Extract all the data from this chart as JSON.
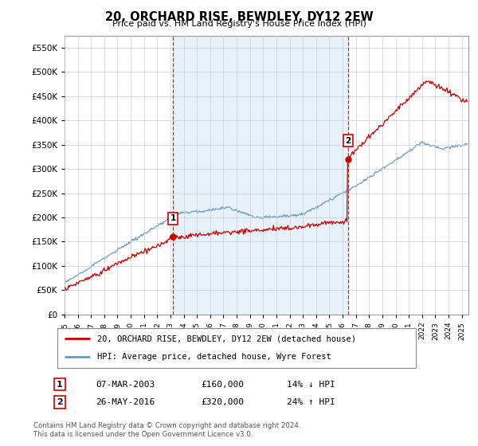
{
  "title": "20, ORCHARD RISE, BEWDLEY, DY12 2EW",
  "subtitle": "Price paid vs. HM Land Registry's House Price Index (HPI)",
  "ytick_values": [
    0,
    50000,
    100000,
    150000,
    200000,
    250000,
    300000,
    350000,
    400000,
    450000,
    500000,
    550000
  ],
  "ylim": [
    0,
    575000
  ],
  "xlim_start": 1995.0,
  "xlim_end": 2025.5,
  "transaction1": {
    "date_num": 2003.18,
    "price": 160000,
    "label": "1",
    "hpi_pct": "14% ↓ HPI",
    "date_str": "07-MAR-2003",
    "price_str": "£160,000"
  },
  "transaction2": {
    "date_num": 2016.4,
    "price": 320000,
    "label": "2",
    "hpi_pct": "24% ↑ HPI",
    "date_str": "26-MAY-2016",
    "price_str": "£320,000"
  },
  "property_color": "#cc0000",
  "hpi_color": "#6699cc",
  "vline_color": "#cc0000",
  "fill_color": "#d0e4f7",
  "grid_color": "#cccccc",
  "background_color": "#ffffff",
  "legend_label_property": "20, ORCHARD RISE, BEWDLEY, DY12 2EW (detached house)",
  "legend_label_hpi": "HPI: Average price, detached house, Wyre Forest",
  "footer1": "Contains HM Land Registry data © Crown copyright and database right 2024.",
  "footer2": "This data is licensed under the Open Government Licence v3.0.",
  "xtick_years": [
    1995,
    1996,
    1997,
    1998,
    1999,
    2000,
    2001,
    2002,
    2003,
    2004,
    2005,
    2006,
    2007,
    2008,
    2009,
    2010,
    2011,
    2012,
    2013,
    2014,
    2015,
    2016,
    2017,
    2018,
    2019,
    2020,
    2021,
    2022,
    2023,
    2024,
    2025
  ]
}
